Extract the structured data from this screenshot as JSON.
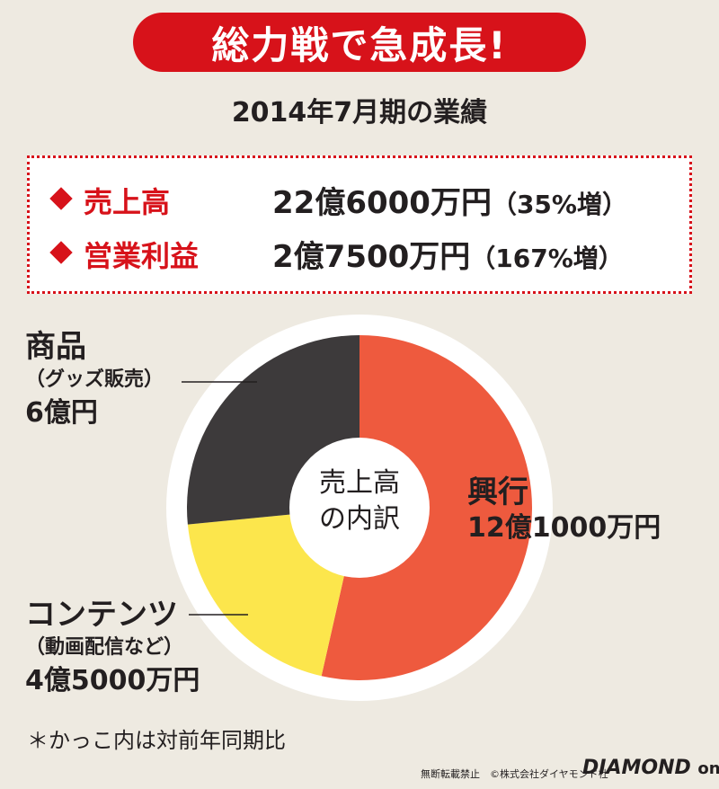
{
  "banner": {
    "title": "総力戦で急成長!"
  },
  "subtitle": "2014年7月期の業績",
  "summary": {
    "rows": [
      {
        "label": "売上高",
        "value": "22億6000万円",
        "change": "（35%増）"
      },
      {
        "label": "営業利益",
        "value": "2億7500万円",
        "change": "（167%増）"
      }
    ]
  },
  "chart_data": {
    "type": "pie",
    "title": "売上高の内訳",
    "unit": "円",
    "slices": [
      {
        "name": "興行",
        "value": 1210000000,
        "label": "12億1000万円",
        "color": "#ee5a3e"
      },
      {
        "name": "コンテンツ（動画配信など）",
        "value": 450000000,
        "label": "4億5000万円",
        "color": "#fce64c"
      },
      {
        "name": "商品（グッズ販売）",
        "value": 600000000,
        "label": "6億円",
        "color": "#3d3a3b"
      }
    ]
  },
  "labels": {
    "center_line1": "売上高",
    "center_line2": "の内訳",
    "kogyo_name": "興行",
    "kogyo_value": "12億1000万円",
    "contents_name": "コンテンツ",
    "contents_sub": "（動画配信など）",
    "contents_value": "4億5000万円",
    "goods_name": "商品",
    "goods_sub": "（グッズ販売）",
    "goods_value": "6億円"
  },
  "footnote": "＊かっこ内は対前年同期比",
  "credit": "無断転載禁止　©株式会社ダイヤモンド社",
  "logo": {
    "main": "DIAMOND",
    "sub": "online"
  }
}
